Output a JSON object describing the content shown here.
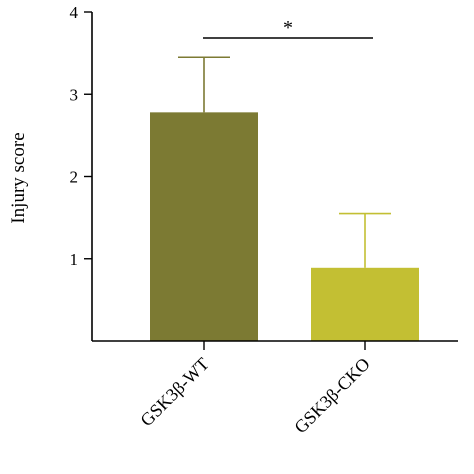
{
  "chart_data": {
    "type": "bar",
    "categories": [
      "GSK3β-WT",
      "GSK3β-CKO"
    ],
    "values": [
      2.78,
      0.89
    ],
    "errors": [
      0.67,
      0.66
    ],
    "ylabel": "Injury score",
    "ylim": [
      0,
      4
    ],
    "yticks": [
      1,
      2,
      3,
      4
    ],
    "colors": [
      "#7c7a33",
      "#c3bf33"
    ],
    "error_colors": [
      "#7c7a33",
      "#c3bf33"
    ],
    "significance": {
      "label": "*",
      "between": [
        0,
        1
      ]
    },
    "grid": false
  }
}
